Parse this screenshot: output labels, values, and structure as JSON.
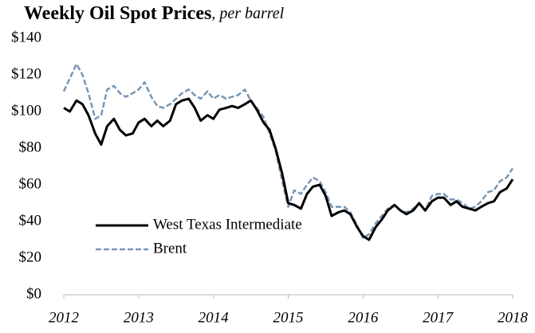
{
  "chart_data": {
    "type": "line",
    "title": "Weekly Oil Spot Prices",
    "subtitle": ", per barrel",
    "x": [
      2012,
      2012.08,
      2012.17,
      2012.25,
      2012.33,
      2012.42,
      2012.5,
      2012.58,
      2012.67,
      2012.75,
      2012.83,
      2012.92,
      2013,
      2013.08,
      2013.17,
      2013.25,
      2013.33,
      2013.42,
      2013.5,
      2013.58,
      2013.67,
      2013.75,
      2013.83,
      2013.92,
      2014,
      2014.08,
      2014.17,
      2014.25,
      2014.33,
      2014.42,
      2014.5,
      2014.58,
      2014.67,
      2014.75,
      2014.83,
      2014.92,
      2015,
      2015.08,
      2015.17,
      2015.25,
      2015.33,
      2015.42,
      2015.5,
      2015.58,
      2015.67,
      2015.75,
      2015.83,
      2015.92,
      2016,
      2016.08,
      2016.17,
      2016.25,
      2016.33,
      2016.42,
      2016.5,
      2016.58,
      2016.67,
      2016.75,
      2016.83,
      2016.92,
      2017,
      2017.08,
      2017.17,
      2017.25,
      2017.33,
      2017.42,
      2017.5,
      2017.58,
      2017.67,
      2017.75,
      2017.83,
      2017.92,
      2018
    ],
    "series": [
      {
        "name": "West Texas Intermediate",
        "color": "#000000",
        "style": "solid",
        "values": [
          102,
          100,
          106,
          104,
          98,
          88,
          82,
          92,
          96,
          90,
          87,
          88,
          94,
          96,
          92,
          95,
          92,
          95,
          104,
          106,
          107,
          102,
          95,
          98,
          96,
          101,
          102,
          103,
          102,
          104,
          106,
          101,
          94,
          90,
          80,
          66,
          50,
          49,
          47,
          55,
          59,
          60,
          54,
          43,
          45,
          46,
          44,
          37,
          32,
          30,
          37,
          41,
          46,
          49,
          46,
          44,
          46,
          50,
          46,
          51,
          53,
          53,
          49,
          51,
          48,
          47,
          46,
          48,
          50,
          51,
          56,
          58,
          63
        ]
      },
      {
        "name": "Brent",
        "color": "#7a96b4",
        "style": "dashed",
        "values": [
          111,
          118,
          126,
          120,
          110,
          96,
          98,
          112,
          114,
          110,
          108,
          110,
          112,
          116,
          108,
          103,
          102,
          104,
          107,
          110,
          112,
          109,
          107,
          111,
          107,
          109,
          107,
          108,
          109,
          112,
          106,
          102,
          97,
          88,
          79,
          62,
          48,
          57,
          55,
          60,
          64,
          62,
          56,
          48,
          48,
          48,
          45,
          38,
          31,
          33,
          39,
          43,
          47,
          49,
          46,
          45,
          47,
          50,
          46,
          54,
          55,
          55,
          52,
          52,
          50,
          47,
          48,
          51,
          56,
          57,
          62,
          64,
          69
        ]
      }
    ],
    "xlim": [
      2012,
      2018
    ],
    "xticks": [
      2012,
      2013,
      2014,
      2015,
      2016,
      2017,
      2018
    ],
    "ylim": [
      0,
      140
    ],
    "yticks": [
      {
        "value": 0,
        "label": "$0"
      },
      {
        "value": 20,
        "label": "$20"
      },
      {
        "value": 40,
        "label": "$40"
      },
      {
        "value": 60,
        "label": "$60"
      },
      {
        "value": 80,
        "label": "$80"
      },
      {
        "value": 100,
        "label": "$100"
      },
      {
        "value": 120,
        "label": "$120"
      },
      {
        "value": 140,
        "label": "$140"
      }
    ],
    "grid": false,
    "legend": "lower-left"
  }
}
